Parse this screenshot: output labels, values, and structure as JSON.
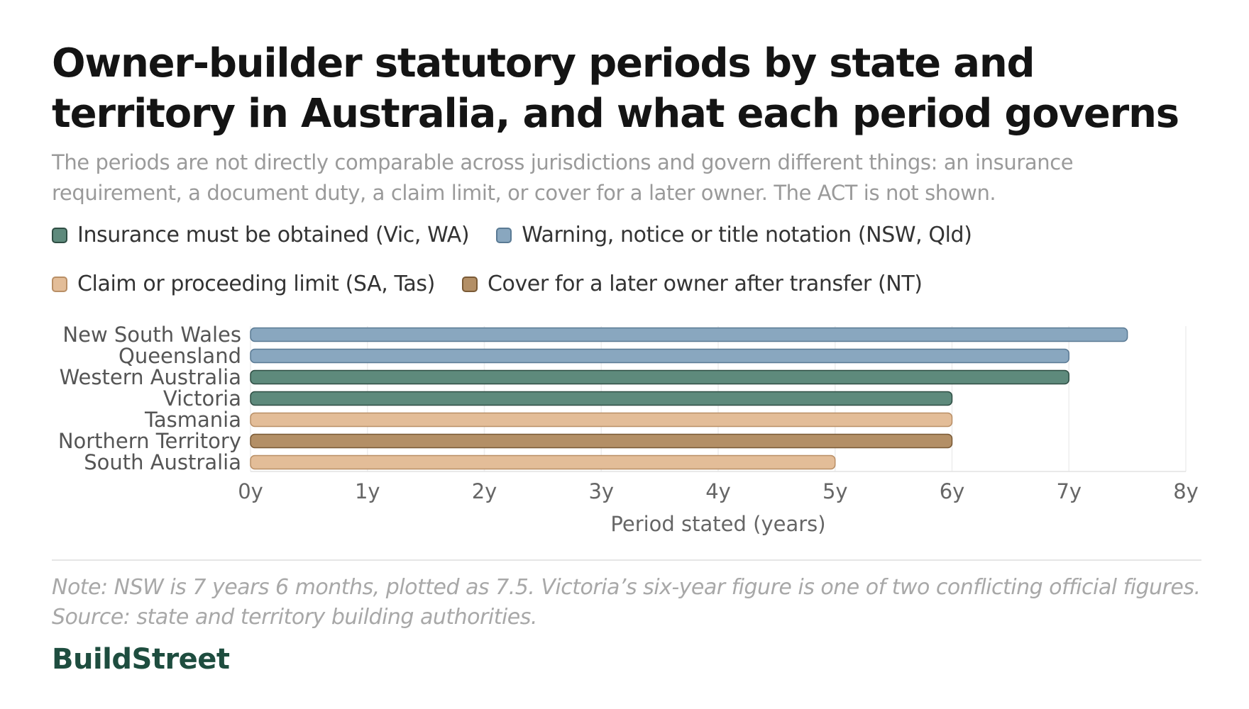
{
  "title": "Owner-builder statutory periods by state and territory in Australia, and what each period governs",
  "subtitle": "The periods are not directly comparable across jurisdictions and govern different things: an insurance requirement, a document duty, a claim limit, or cover for a later owner. The ACT is not shown.",
  "legend": [
    {
      "label": "Insurance must be obtained (Vic, WA)",
      "color": "#5e8a7c",
      "stroke": "#2f4e44"
    },
    {
      "label": "Warning, notice or title notation (NSW, Qld)",
      "color": "#89a7bf",
      "stroke": "#5a7a94"
    },
    {
      "label": "Claim or proceeding limit (SA, Tas)",
      "color": "#e3bd98",
      "stroke": "#b98f66"
    },
    {
      "label": "Cover for a later owner after transfer (NT)",
      "color": "#b38f66",
      "stroke": "#7a5a36"
    }
  ],
  "chart_data": {
    "type": "bar",
    "orientation": "horizontal",
    "categories": [
      "New South Wales",
      "Queensland",
      "Western Australia",
      "Victoria",
      "Tasmania",
      "Northern Territory",
      "South Australia"
    ],
    "values": [
      7.5,
      7,
      7,
      6,
      6,
      6,
      5
    ],
    "groups": [
      1,
      1,
      0,
      0,
      2,
      3,
      2
    ],
    "xlim": [
      0,
      8
    ],
    "xticks": [
      0,
      1,
      2,
      3,
      4,
      5,
      6,
      7,
      8
    ],
    "tick_labels": [
      "0y",
      "1y",
      "2y",
      "3y",
      "4y",
      "5y",
      "6y",
      "7y",
      "8y"
    ],
    "xlabel": "Period stated (years)",
    "grid": true
  },
  "note": "Note: NSW is 7 years 6 months, plotted as 7.5. Victoria’s six-year figure is one of two conflicting official figures.",
  "source": "Source: state and territory building authorities.",
  "brand": "BuildStreet"
}
